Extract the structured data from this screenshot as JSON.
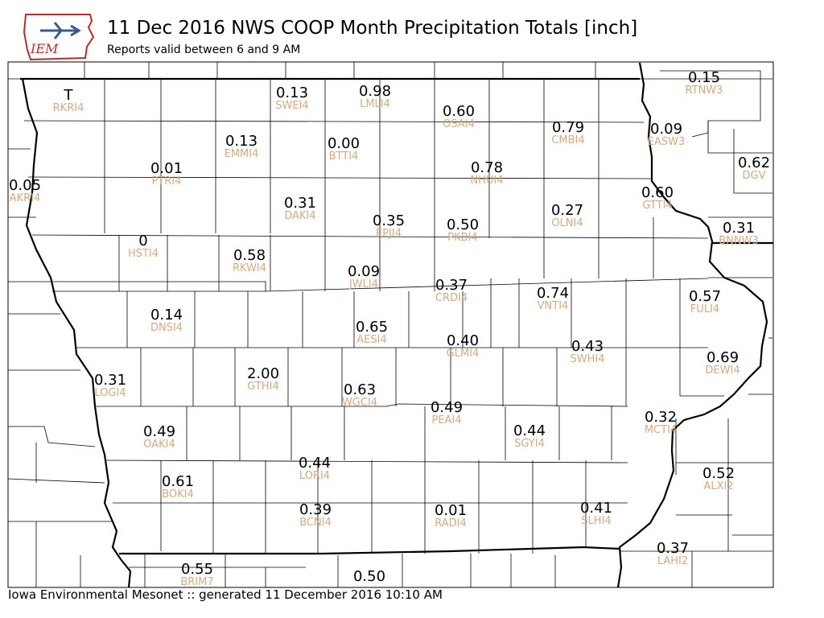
{
  "header": {
    "logo_text": "IEM",
    "title": "11 Dec 2016 NWS COOP Month Precipitation Totals [inch]",
    "subtitle": "Reports valid between 6 and 9 AM"
  },
  "footer": {
    "text": "Iowa Environmental Mesonet :: generated 11 December 2016 10:10 AM"
  },
  "colors": {
    "value_text": "#000000",
    "station_text": "#d2aa82",
    "state_border": "#000000",
    "county_lines": "#000000"
  },
  "stations": [
    {
      "id": "RKRI4",
      "value": "T"
    },
    {
      "id": "SWEI4",
      "value": "0.13"
    },
    {
      "id": "LMLI4",
      "value": "0.98"
    },
    {
      "id": "OSAI4",
      "value": "0.60"
    },
    {
      "id": "CMBI4",
      "value": "0.79"
    },
    {
      "id": "EASW3",
      "value": "0.09"
    },
    {
      "id": "RTNW3",
      "value": "0.15"
    },
    {
      "id": "EMMI4",
      "value": "0.13"
    },
    {
      "id": "BTTI4",
      "value": "0.00"
    },
    {
      "id": "NHUI4",
      "value": "0.78"
    },
    {
      "id": "DGV",
      "value": "0.62"
    },
    {
      "id": "PTRI4",
      "value": "0.01"
    },
    {
      "id": "AKRI4",
      "value": "0.05"
    },
    {
      "id": "GTTI4",
      "value": "0.60"
    },
    {
      "id": "DAKI4",
      "value": "0.31"
    },
    {
      "id": "EPJI4",
      "value": "0.35"
    },
    {
      "id": "PKBI4",
      "value": "0.50"
    },
    {
      "id": "OLNI4",
      "value": "0.27"
    },
    {
      "id": "BNNW3",
      "value": "0.31"
    },
    {
      "id": "HSTI4",
      "value": "0"
    },
    {
      "id": "RKWI4",
      "value": "0.58"
    },
    {
      "id": "JWLI4",
      "value": "0.09"
    },
    {
      "id": "CRDI4",
      "value": "0.37"
    },
    {
      "id": "VNTI4",
      "value": "0.74"
    },
    {
      "id": "FULI4",
      "value": "0.57"
    },
    {
      "id": "DNSI4",
      "value": "0.14"
    },
    {
      "id": "AESI4",
      "value": "0.65"
    },
    {
      "id": "GLMI4",
      "value": "0.40"
    },
    {
      "id": "SWHI4",
      "value": "0.43"
    },
    {
      "id": "DEWI4",
      "value": "0.69"
    },
    {
      "id": "LOGI4",
      "value": "0.31"
    },
    {
      "id": "GTHI4",
      "value": "2.00"
    },
    {
      "id": "WGCI4",
      "value": "0.63"
    },
    {
      "id": "PEAI4",
      "value": "0.49"
    },
    {
      "id": "SGYI4",
      "value": "0.44"
    },
    {
      "id": "MCTI4",
      "value": "0.32"
    },
    {
      "id": "OAKI4",
      "value": "0.49"
    },
    {
      "id": "LORI4",
      "value": "0.44"
    },
    {
      "id": "ALXI2",
      "value": "0.52"
    },
    {
      "id": "BOKI4",
      "value": "0.61"
    },
    {
      "id": "BCNI4",
      "value": "0.39"
    },
    {
      "id": "RADI4",
      "value": "0.01"
    },
    {
      "id": "SLHI4",
      "value": "0.41"
    },
    {
      "id": "LAHI2",
      "value": "0.37"
    },
    {
      "id": "BRIM7",
      "value": "0.55"
    },
    {
      "id": "",
      "value": "0.50"
    }
  ]
}
